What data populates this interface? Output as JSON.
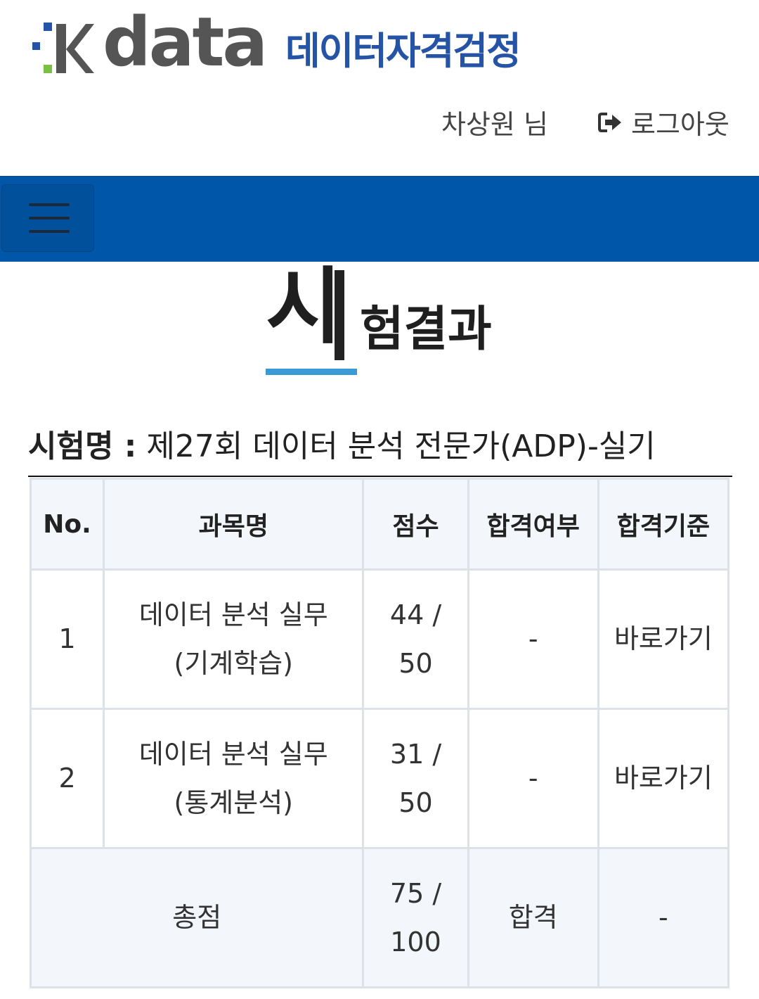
{
  "brand": {
    "logo_word": "data",
    "logo_sub": "데이터자격검정",
    "colors": {
      "blue": "#2553a6",
      "green": "#7ac143",
      "navy": "#0056a8",
      "accent": "#3a9ad6"
    }
  },
  "header": {
    "user_name": "차상원 님",
    "logout_label": "로그아웃",
    "logout_icon": "sign-out-icon"
  },
  "nav": {
    "menu_icon": "hamburger-icon"
  },
  "page": {
    "title_first": "시",
    "title_rest": "험결과"
  },
  "exam": {
    "label": "시험명 :",
    "name": "제27회 데이터 분석 전문가(ADP)-실기"
  },
  "table": {
    "headers": [
      "No.",
      "과목명",
      "점수",
      "합격여부",
      "합격기준"
    ],
    "rows": [
      {
        "no": "1",
        "subject_line1": "데이터 분석 실무",
        "subject_line2": "(기계학습)",
        "score_line1": "44 /",
        "score_line2": "50",
        "pass": "-",
        "criteria": "바로가기"
      },
      {
        "no": "2",
        "subject_line1": "데이터 분석 실무",
        "subject_line2": "(통계분석)",
        "score_line1": "31 /",
        "score_line2": "50",
        "pass": "-",
        "criteria": "바로가기"
      }
    ],
    "total": {
      "label": "총점",
      "score_line1": "75 /",
      "score_line2": "100",
      "pass": "합격",
      "criteria": "-"
    }
  }
}
